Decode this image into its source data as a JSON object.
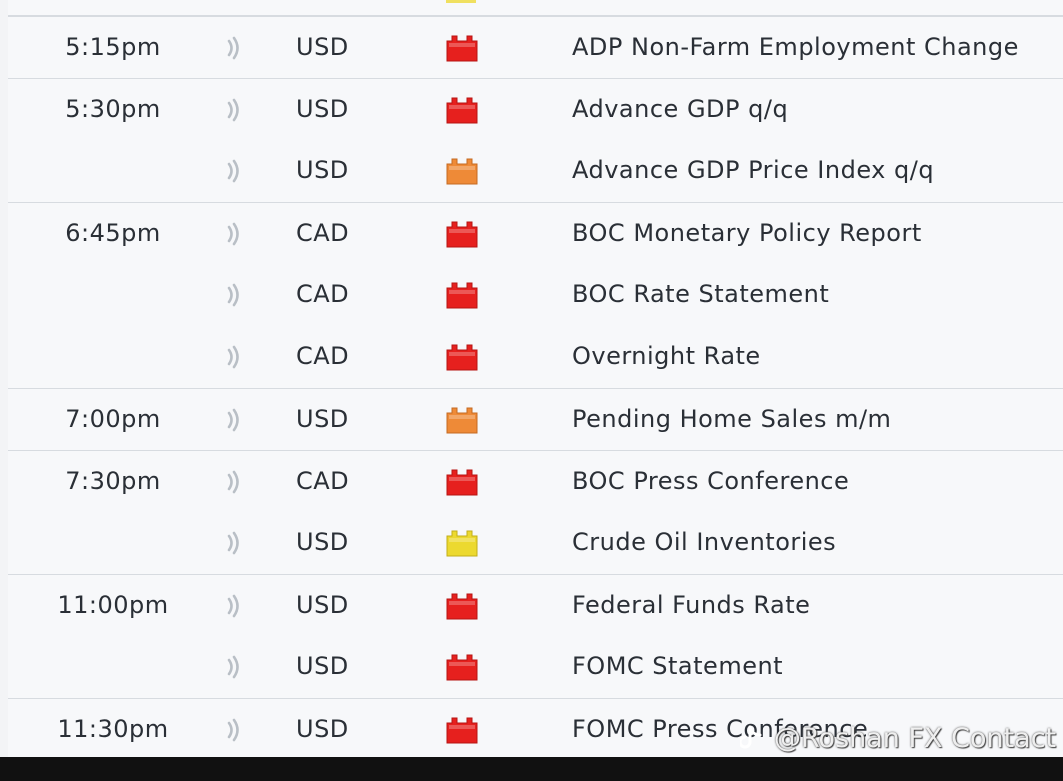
{
  "colors": {
    "high_impact": "#e6201e",
    "medium_impact": "#ee8a37",
    "low_impact": "#ecd92f",
    "sound_icon": "#b9bfc6"
  },
  "events": [
    {
      "time": "5:15pm",
      "currency": "USD",
      "impact": "high",
      "event": "ADP Non-Farm Employment Change"
    },
    {
      "time": "5:30pm",
      "currency": "USD",
      "impact": "high",
      "event": "Advance GDP q/q"
    },
    {
      "time": "",
      "currency": "USD",
      "impact": "medium",
      "event": "Advance GDP Price Index q/q"
    },
    {
      "time": "6:45pm",
      "currency": "CAD",
      "impact": "high",
      "event": "BOC Monetary Policy Report"
    },
    {
      "time": "",
      "currency": "CAD",
      "impact": "high",
      "event": "BOC Rate Statement"
    },
    {
      "time": "",
      "currency": "CAD",
      "impact": "high",
      "event": "Overnight Rate"
    },
    {
      "time": "7:00pm",
      "currency": "USD",
      "impact": "medium",
      "event": "Pending Home Sales m/m"
    },
    {
      "time": "7:30pm",
      "currency": "CAD",
      "impact": "high",
      "event": "BOC Press Conference"
    },
    {
      "time": "",
      "currency": "USD",
      "impact": "low",
      "event": "Crude Oil Inventories"
    },
    {
      "time": "11:00pm",
      "currency": "USD",
      "impact": "high",
      "event": "Federal Funds Rate"
    },
    {
      "time": "",
      "currency": "USD",
      "impact": "high",
      "event": "FOMC Statement"
    },
    {
      "time": "11:30pm",
      "currency": "USD",
      "impact": "high",
      "event": "FOMC Press Conference"
    }
  ],
  "watermark": {
    "text": "@Roshan FX Contact"
  }
}
